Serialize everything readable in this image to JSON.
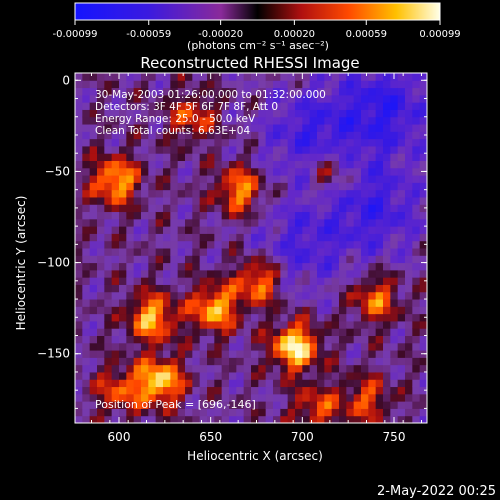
{
  "colorbar": {
    "ticks": [
      "-0.00099",
      "-0.00059",
      "-0.00020",
      "0.00020",
      "0.00059",
      "0.00099"
    ],
    "unit_label": "(photons cm⁻² s⁻¹ asec⁻²)",
    "range": [
      -0.00099,
      0.00099
    ]
  },
  "chart_data": {
    "type": "heatmap",
    "title": "Reconstructed RHESSI Image",
    "xlabel": "Heliocentric X (arcsec)",
    "ylabel": "Heliocentric Y (arcsec)",
    "xlim": [
      576,
      768
    ],
    "ylim": [
      -188,
      4
    ],
    "x_ticks": [
      600,
      650,
      700,
      750
    ],
    "y_ticks": [
      0,
      -50,
      -100,
      -150
    ],
    "annotations": [
      "30-May-2003 01:26:00.000 to 01:32:00.000",
      "Detectors: 3F 4F 5F 6F 7F 8F, Att 0",
      "Energy Range: 25.0 - 50.0 keV",
      "Clean     Total counts: 6.63E+04"
    ],
    "peak_label": "Position of Peak = [696,-146]",
    "peak": [
      696,
      -146
    ],
    "bright_sources": [
      {
        "x": 696,
        "y": -146,
        "value": 0.00099
      },
      {
        "x": 622,
        "y": -165,
        "value": 0.0009
      },
      {
        "x": 598,
        "y": -55,
        "value": 0.0008
      },
      {
        "x": 666,
        "y": -60,
        "value": 0.0007
      },
      {
        "x": 652,
        "y": -125,
        "value": 0.0008
      },
      {
        "x": 618,
        "y": -130,
        "value": 0.0008
      },
      {
        "x": 676,
        "y": -110,
        "value": 0.0007
      },
      {
        "x": 740,
        "y": -120,
        "value": 0.0006
      },
      {
        "x": 715,
        "y": -50,
        "value": 0.0005
      },
      {
        "x": 735,
        "y": -175,
        "value": 0.0005
      },
      {
        "x": 640,
        "y": -20,
        "value": 0.0005
      },
      {
        "x": 600,
        "y": -170,
        "value": 0.0005
      },
      {
        "x": 708,
        "y": -180,
        "value": 0.0005
      }
    ],
    "dim_regions": [
      {
        "x": 745,
        "y": -15,
        "value": -0.0006
      },
      {
        "x": 705,
        "y": -30,
        "value": -0.0005
      },
      {
        "x": 740,
        "y": -70,
        "value": -0.0005
      },
      {
        "x": 700,
        "y": -90,
        "value": -0.0004
      }
    ]
  },
  "footer": {
    "date": "2-May-2022 00:25"
  }
}
